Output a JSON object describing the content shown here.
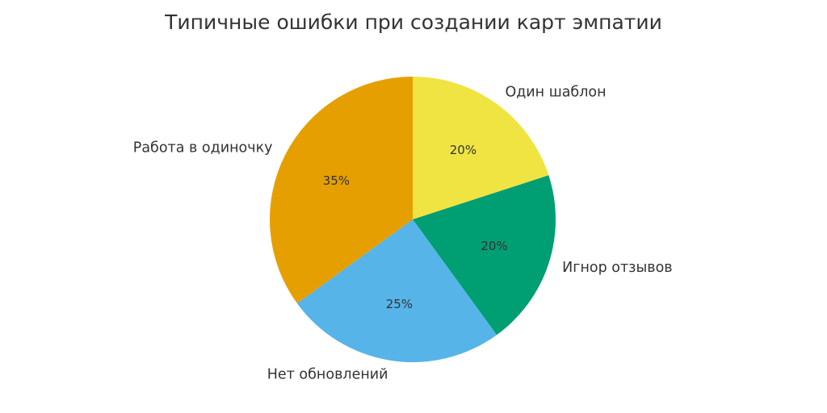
{
  "chart_data": {
    "type": "pie",
    "title": "Типичные ошибки при создании карт эмпатии",
    "slices": [
      {
        "label": "Один шаблон",
        "value": 20,
        "percent_label": "20%",
        "color": "#F0E442"
      },
      {
        "label": "Игнор отзывов",
        "value": 20,
        "percent_label": "20%",
        "color": "#009E73"
      },
      {
        "label": "Нет обновлений",
        "value": 25,
        "percent_label": "25%",
        "color": "#56B4E9"
      },
      {
        "label": "Работа в одиночку",
        "value": 35,
        "percent_label": "35%",
        "color": "#E69F00"
      }
    ],
    "start_angle": "top, clockwise",
    "legend": "none"
  }
}
